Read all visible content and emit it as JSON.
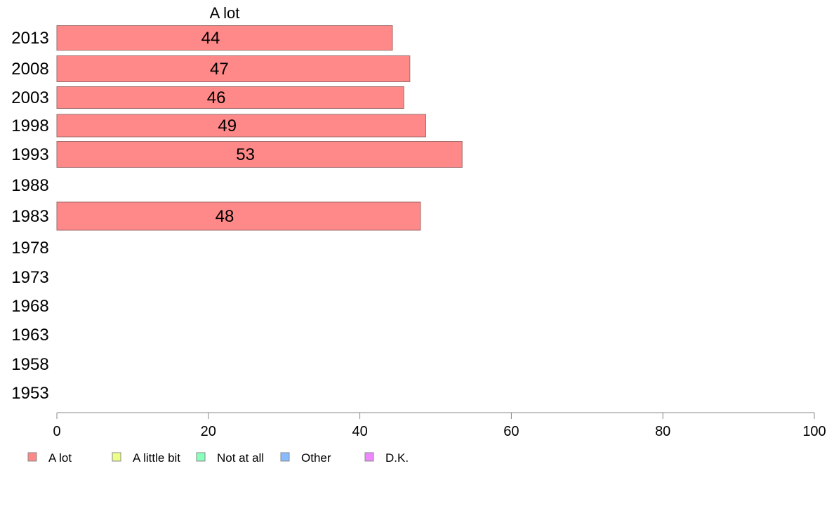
{
  "chart_data": {
    "type": "bar",
    "orientation": "horizontal",
    "stacked": true,
    "series_header": "A lot",
    "categories": [
      "2013",
      "2008",
      "2003",
      "1998",
      "1993",
      "1988",
      "1983",
      "1978",
      "1973",
      "1968",
      "1963",
      "1958",
      "1953"
    ],
    "series": [
      {
        "name": "A lot",
        "color": "#ff8888",
        "values": [
          44.3,
          46.6,
          45.8,
          48.7,
          53.5,
          null,
          48.0,
          null,
          null,
          null,
          null,
          null,
          null
        ]
      }
    ],
    "data_labels": [
      "44",
      "47",
      "46",
      "49",
      "53",
      "",
      "48",
      "",
      "",
      "",
      "",
      "",
      ""
    ],
    "xlim": [
      0,
      100
    ],
    "xticks": [
      0,
      20,
      40,
      60,
      80,
      100
    ],
    "grid": false,
    "legend": {
      "placement": "bottom-left",
      "items": [
        {
          "label": "A lot",
          "color": "#ff8888"
        },
        {
          "label": "A little bit",
          "color": "#eeff88"
        },
        {
          "label": "Not at all",
          "color": "#88ffbb"
        },
        {
          "label": "Other",
          "color": "#88bbff"
        },
        {
          "label": "D.K.",
          "color": "#ee88ff"
        }
      ]
    },
    "bar_stroke": "#a06a6a",
    "axis_color": "#888888"
  }
}
